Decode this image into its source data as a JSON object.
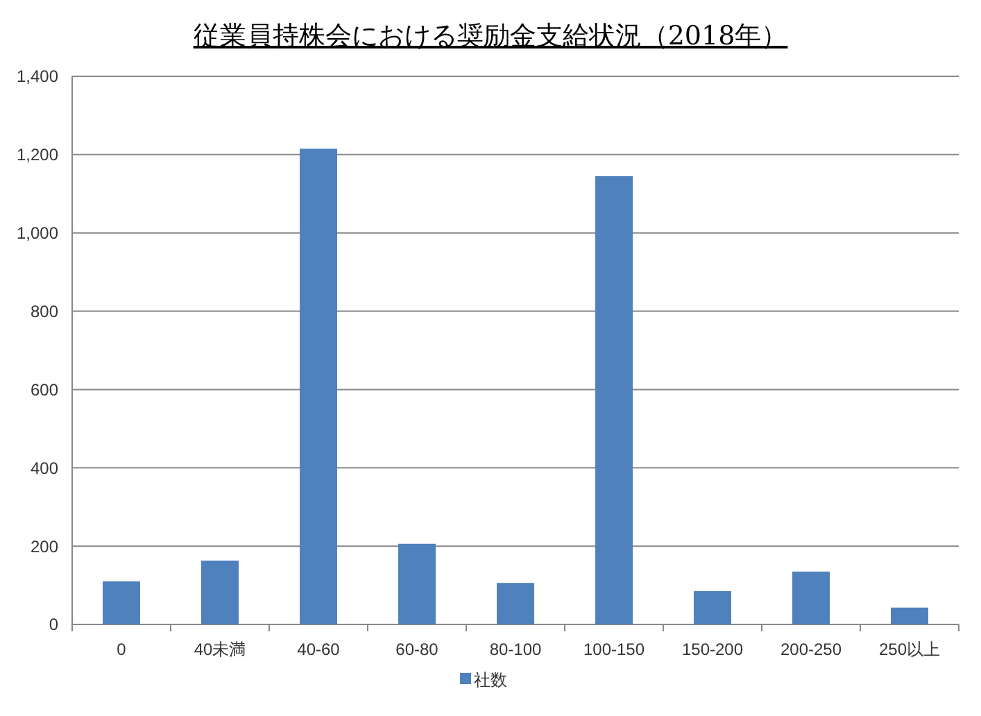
{
  "chart_data": {
    "type": "bar",
    "title": "従業員持株会における奨励金支給状況（2018年）",
    "categories": [
      "0",
      "40未満",
      "40-60",
      "60-80",
      "80-100",
      "100-150",
      "150-200",
      "200-250",
      "250以上"
    ],
    "series": [
      {
        "name": "社数",
        "color": "#4f81bd",
        "values": [
          110,
          163,
          1215,
          206,
          106,
          1145,
          85,
          135,
          43
        ]
      }
    ],
    "ylim": [
      0,
      1400
    ],
    "yticks": [
      {
        "value": 0,
        "label": "0"
      },
      {
        "value": 200,
        "label": "200"
      },
      {
        "value": 400,
        "label": "400"
      },
      {
        "value": 600,
        "label": "600"
      },
      {
        "value": 800,
        "label": "800"
      },
      {
        "value": 1000,
        "label": "1,000"
      },
      {
        "value": 1200,
        "label": "1,200"
      },
      {
        "value": 1400,
        "label": "1,400"
      }
    ],
    "grid": "y",
    "legend": "bottom"
  }
}
